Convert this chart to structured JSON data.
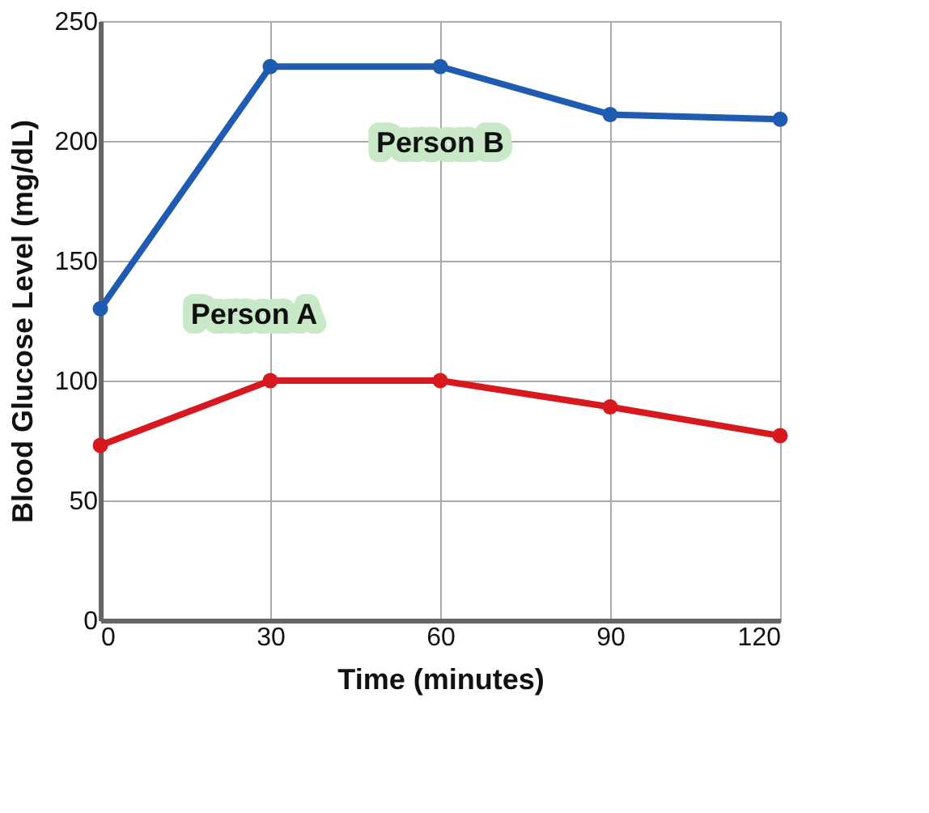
{
  "chart_data": {
    "type": "line",
    "xlabel": "Time (minutes)",
    "ylabel": "Blood Glucose Level (mg/dL)",
    "x": [
      0,
      30,
      60,
      90,
      120
    ],
    "series": [
      {
        "name": "Person B",
        "color": "#1f5bb0",
        "values": [
          130,
          231,
          231,
          211,
          209
        ]
      },
      {
        "name": "Person A",
        "color": "#d7191f",
        "values": [
          73,
          100,
          100,
          89,
          77
        ]
      }
    ],
    "xlim": [
      0,
      120
    ],
    "xticks": [
      0,
      30,
      60,
      90,
      120
    ],
    "ylim": [
      0,
      250
    ],
    "yticks": [
      0,
      50,
      100,
      150,
      200,
      250
    ],
    "grid": true,
    "legend": false,
    "marker": "circle",
    "line_style": "solid"
  }
}
